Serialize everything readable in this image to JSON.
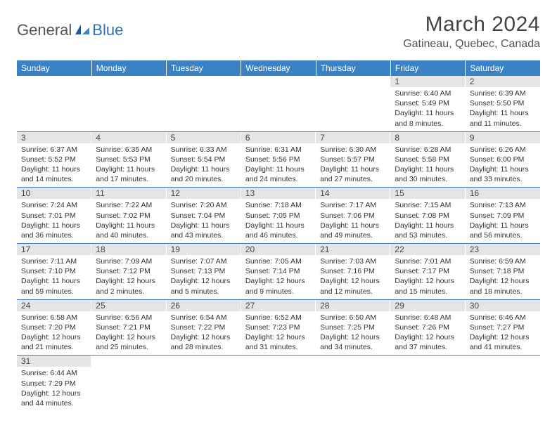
{
  "logo": {
    "part1": "General",
    "part2": "Blue"
  },
  "title": "March 2024",
  "location": "Gatineau, Quebec, Canada",
  "colors": {
    "header_bg": "#3b82c4",
    "header_text": "#ffffff",
    "daynum_bg": "#e5e5e5",
    "row_border": "#3b82c4",
    "logo_grey": "#555555",
    "logo_blue": "#2b72b8"
  },
  "weekdays": [
    "Sunday",
    "Monday",
    "Tuesday",
    "Wednesday",
    "Thursday",
    "Friday",
    "Saturday"
  ],
  "leading_blanks": 5,
  "days": [
    {
      "n": 1,
      "sr": "6:40 AM",
      "ss": "5:49 PM",
      "dl": "11 hours and 8 minutes."
    },
    {
      "n": 2,
      "sr": "6:39 AM",
      "ss": "5:50 PM",
      "dl": "11 hours and 11 minutes."
    },
    {
      "n": 3,
      "sr": "6:37 AM",
      "ss": "5:52 PM",
      "dl": "11 hours and 14 minutes."
    },
    {
      "n": 4,
      "sr": "6:35 AM",
      "ss": "5:53 PM",
      "dl": "11 hours and 17 minutes."
    },
    {
      "n": 5,
      "sr": "6:33 AM",
      "ss": "5:54 PM",
      "dl": "11 hours and 20 minutes."
    },
    {
      "n": 6,
      "sr": "6:31 AM",
      "ss": "5:56 PM",
      "dl": "11 hours and 24 minutes."
    },
    {
      "n": 7,
      "sr": "6:30 AM",
      "ss": "5:57 PM",
      "dl": "11 hours and 27 minutes."
    },
    {
      "n": 8,
      "sr": "6:28 AM",
      "ss": "5:58 PM",
      "dl": "11 hours and 30 minutes."
    },
    {
      "n": 9,
      "sr": "6:26 AM",
      "ss": "6:00 PM",
      "dl": "11 hours and 33 minutes."
    },
    {
      "n": 10,
      "sr": "7:24 AM",
      "ss": "7:01 PM",
      "dl": "11 hours and 36 minutes."
    },
    {
      "n": 11,
      "sr": "7:22 AM",
      "ss": "7:02 PM",
      "dl": "11 hours and 40 minutes."
    },
    {
      "n": 12,
      "sr": "7:20 AM",
      "ss": "7:04 PM",
      "dl": "11 hours and 43 minutes."
    },
    {
      "n": 13,
      "sr": "7:18 AM",
      "ss": "7:05 PM",
      "dl": "11 hours and 46 minutes."
    },
    {
      "n": 14,
      "sr": "7:17 AM",
      "ss": "7:06 PM",
      "dl": "11 hours and 49 minutes."
    },
    {
      "n": 15,
      "sr": "7:15 AM",
      "ss": "7:08 PM",
      "dl": "11 hours and 53 minutes."
    },
    {
      "n": 16,
      "sr": "7:13 AM",
      "ss": "7:09 PM",
      "dl": "11 hours and 56 minutes."
    },
    {
      "n": 17,
      "sr": "7:11 AM",
      "ss": "7:10 PM",
      "dl": "11 hours and 59 minutes."
    },
    {
      "n": 18,
      "sr": "7:09 AM",
      "ss": "7:12 PM",
      "dl": "12 hours and 2 minutes."
    },
    {
      "n": 19,
      "sr": "7:07 AM",
      "ss": "7:13 PM",
      "dl": "12 hours and 5 minutes."
    },
    {
      "n": 20,
      "sr": "7:05 AM",
      "ss": "7:14 PM",
      "dl": "12 hours and 9 minutes."
    },
    {
      "n": 21,
      "sr": "7:03 AM",
      "ss": "7:16 PM",
      "dl": "12 hours and 12 minutes."
    },
    {
      "n": 22,
      "sr": "7:01 AM",
      "ss": "7:17 PM",
      "dl": "12 hours and 15 minutes."
    },
    {
      "n": 23,
      "sr": "6:59 AM",
      "ss": "7:18 PM",
      "dl": "12 hours and 18 minutes."
    },
    {
      "n": 24,
      "sr": "6:58 AM",
      "ss": "7:20 PM",
      "dl": "12 hours and 21 minutes."
    },
    {
      "n": 25,
      "sr": "6:56 AM",
      "ss": "7:21 PM",
      "dl": "12 hours and 25 minutes."
    },
    {
      "n": 26,
      "sr": "6:54 AM",
      "ss": "7:22 PM",
      "dl": "12 hours and 28 minutes."
    },
    {
      "n": 27,
      "sr": "6:52 AM",
      "ss": "7:23 PM",
      "dl": "12 hours and 31 minutes."
    },
    {
      "n": 28,
      "sr": "6:50 AM",
      "ss": "7:25 PM",
      "dl": "12 hours and 34 minutes."
    },
    {
      "n": 29,
      "sr": "6:48 AM",
      "ss": "7:26 PM",
      "dl": "12 hours and 37 minutes."
    },
    {
      "n": 30,
      "sr": "6:46 AM",
      "ss": "7:27 PM",
      "dl": "12 hours and 41 minutes."
    },
    {
      "n": 31,
      "sr": "6:44 AM",
      "ss": "7:29 PM",
      "dl": "12 hours and 44 minutes."
    }
  ],
  "labels": {
    "sunrise": "Sunrise:",
    "sunset": "Sunset:",
    "daylight": "Daylight:"
  }
}
